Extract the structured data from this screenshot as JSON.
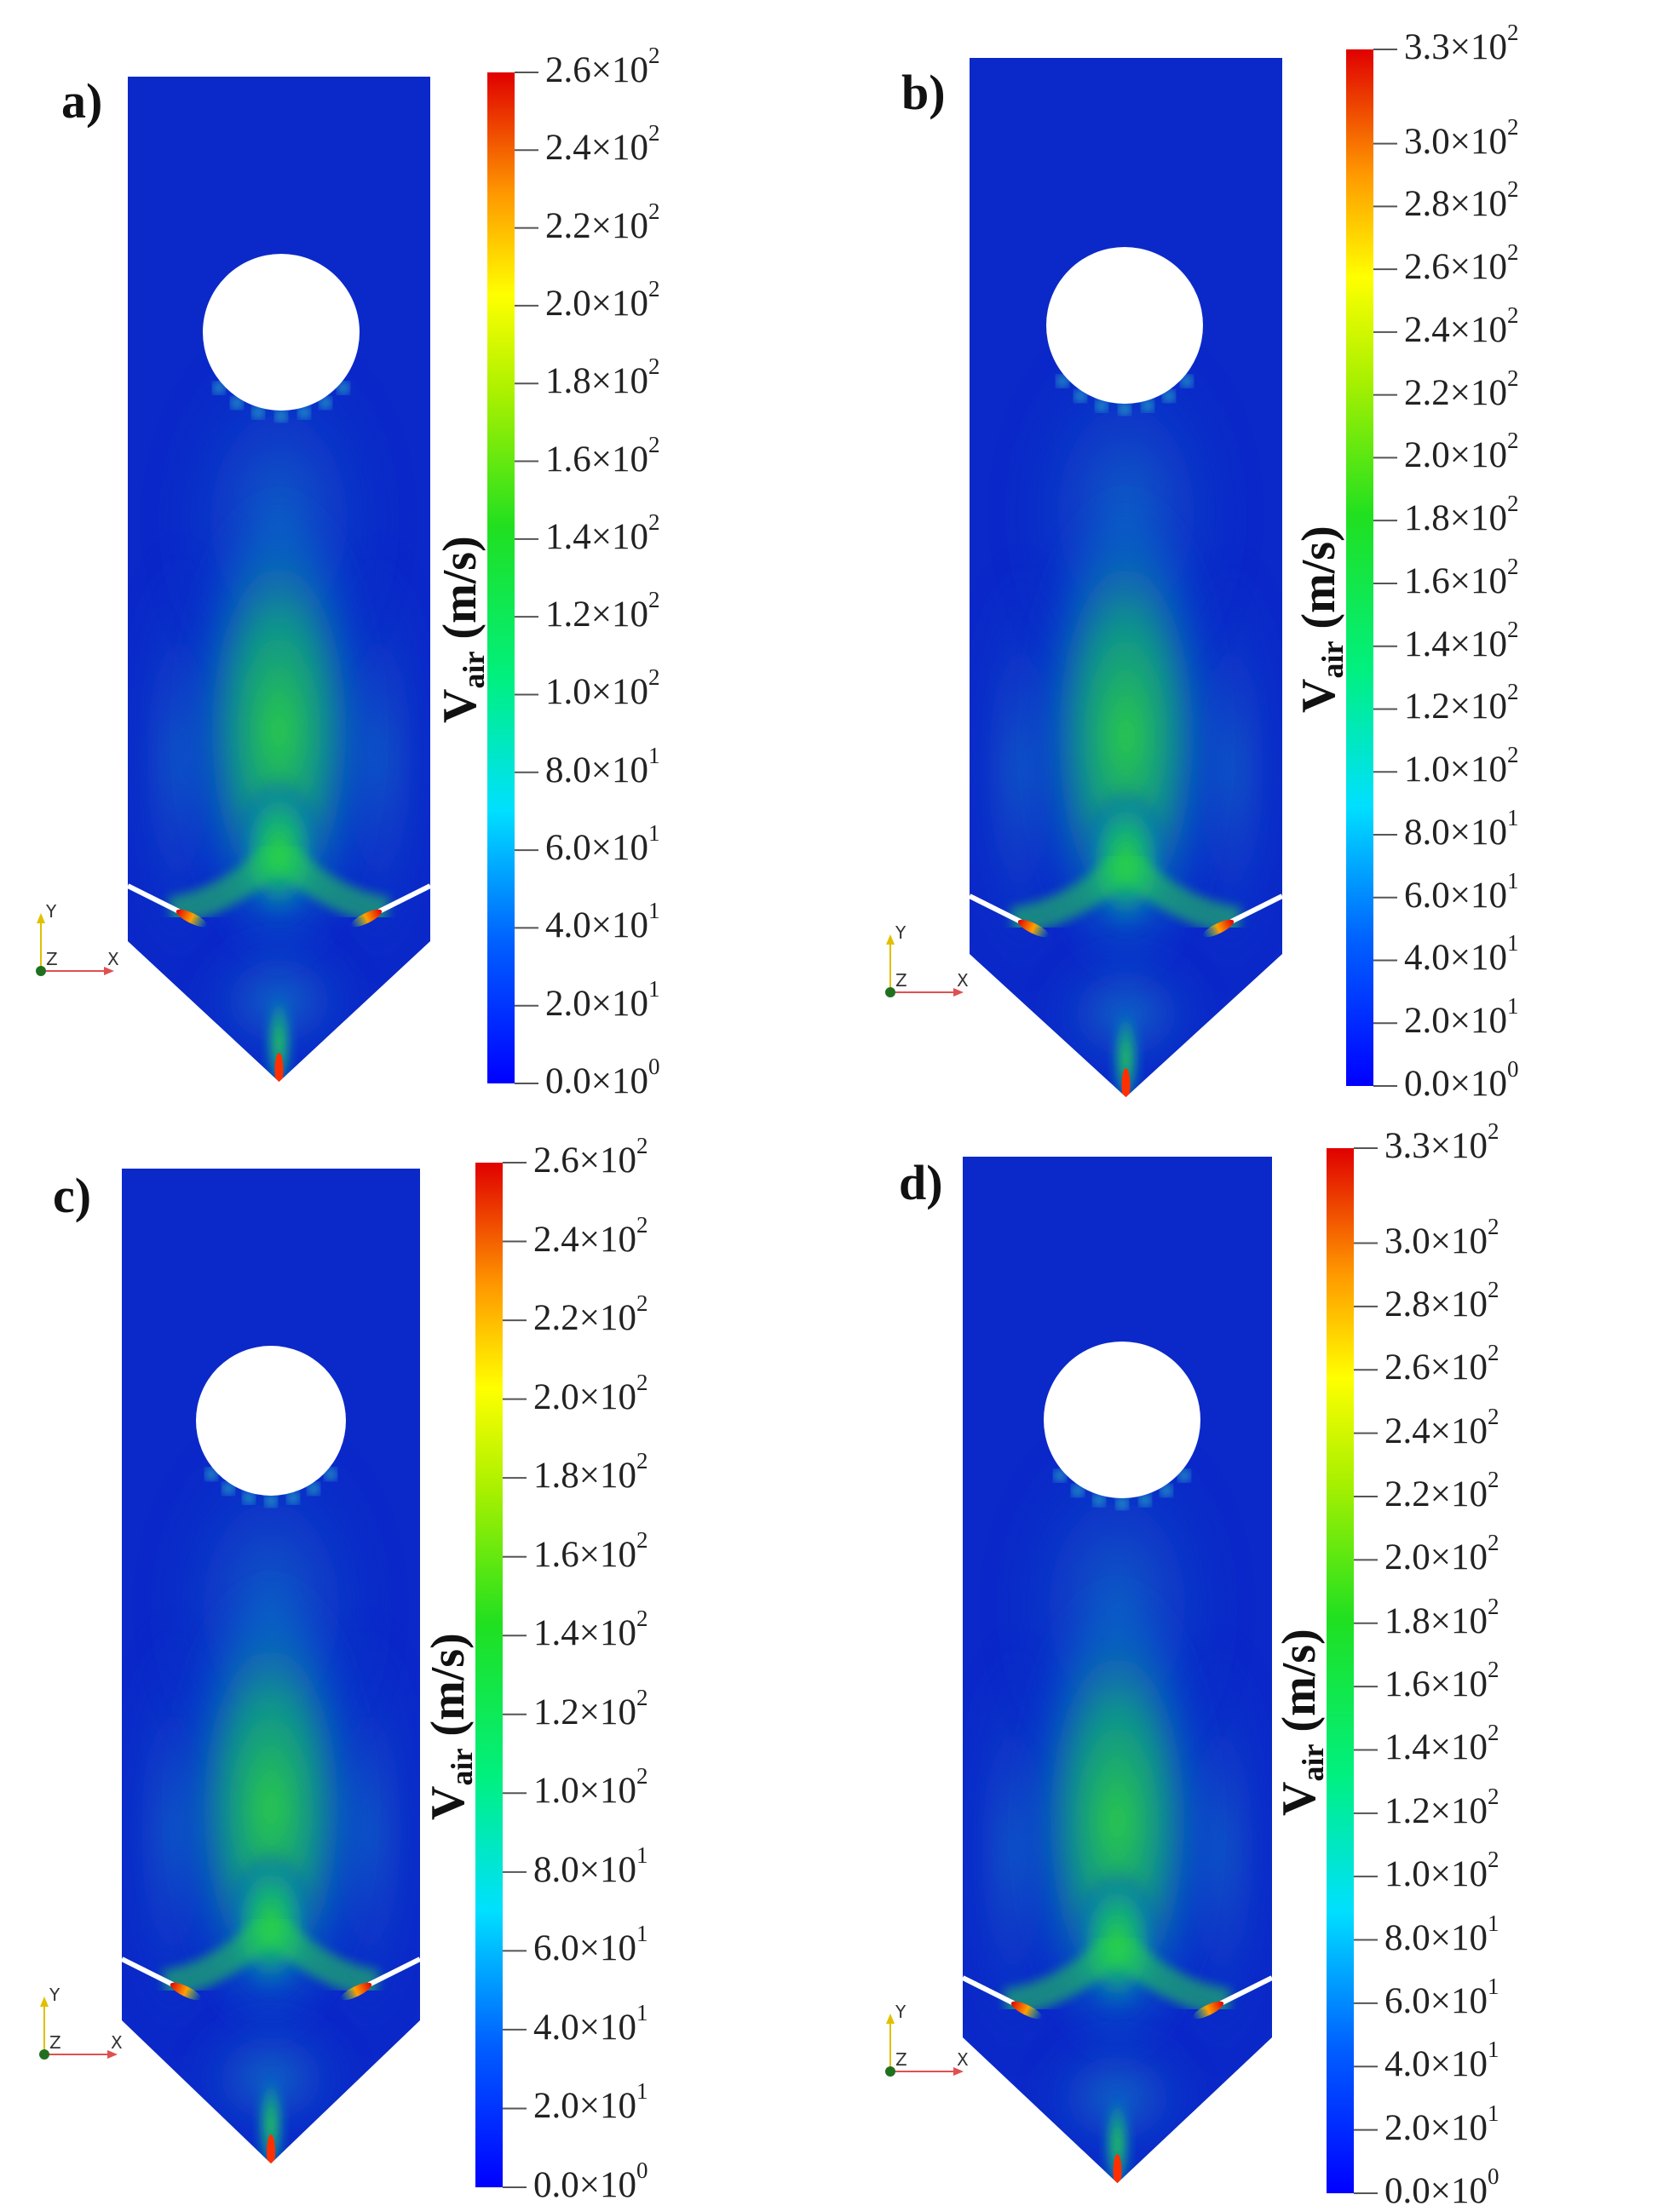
{
  "colors": {
    "field_background": "#0b29c9",
    "scale": [
      "#0000ff",
      "#0080ff",
      "#00ffff",
      "#00ff60",
      "#60ff00",
      "#ffff00",
      "#ffa000",
      "#ff3000",
      "#e00000"
    ]
  },
  "icons": {
    "triad": "xyz-axis-triad-icon",
    "hole": "circular-hole"
  },
  "axis_letters": {
    "y": "Y",
    "z": "Z",
    "x": "X"
  },
  "panels": [
    {
      "label": "a)",
      "colorbar": {
        "title_main": "V",
        "title_sub": "air",
        "title_unit": " (m/s)",
        "min": 0,
        "max": 260,
        "ticks": [
          {
            "mant": "0.0",
            "exp": "0",
            "value": 0
          },
          {
            "mant": "2.0",
            "exp": "1",
            "value": 20
          },
          {
            "mant": "4.0",
            "exp": "1",
            "value": 40
          },
          {
            "mant": "6.0",
            "exp": "1",
            "value": 60
          },
          {
            "mant": "8.0",
            "exp": "1",
            "value": 80
          },
          {
            "mant": "1.0",
            "exp": "2",
            "value": 100
          },
          {
            "mant": "1.2",
            "exp": "2",
            "value": 120
          },
          {
            "mant": "1.4",
            "exp": "2",
            "value": 140
          },
          {
            "mant": "1.6",
            "exp": "2",
            "value": 160
          },
          {
            "mant": "1.8",
            "exp": "2",
            "value": 180
          },
          {
            "mant": "2.0",
            "exp": "2",
            "value": 200
          },
          {
            "mant": "2.2",
            "exp": "2",
            "value": 220
          },
          {
            "mant": "2.4",
            "exp": "2",
            "value": 240
          },
          {
            "mant": "2.6",
            "exp": "2",
            "value": 260
          }
        ]
      }
    },
    {
      "label": "b)",
      "colorbar": {
        "title_main": "V",
        "title_sub": "air",
        "title_unit": " (m/s)",
        "min": 0,
        "max": 330,
        "ticks": [
          {
            "mant": "0.0",
            "exp": "0",
            "value": 0
          },
          {
            "mant": "2.0",
            "exp": "1",
            "value": 20
          },
          {
            "mant": "4.0",
            "exp": "1",
            "value": 40
          },
          {
            "mant": "6.0",
            "exp": "1",
            "value": 60
          },
          {
            "mant": "8.0",
            "exp": "1",
            "value": 80
          },
          {
            "mant": "1.0",
            "exp": "2",
            "value": 100
          },
          {
            "mant": "1.2",
            "exp": "2",
            "value": 120
          },
          {
            "mant": "1.4",
            "exp": "2",
            "value": 140
          },
          {
            "mant": "1.6",
            "exp": "2",
            "value": 160
          },
          {
            "mant": "1.8",
            "exp": "2",
            "value": 180
          },
          {
            "mant": "2.0",
            "exp": "2",
            "value": 200
          },
          {
            "mant": "2.2",
            "exp": "2",
            "value": 220
          },
          {
            "mant": "2.4",
            "exp": "2",
            "value": 240
          },
          {
            "mant": "2.6",
            "exp": "2",
            "value": 260
          },
          {
            "mant": "2.8",
            "exp": "2",
            "value": 280
          },
          {
            "mant": "3.0",
            "exp": "2",
            "value": 300
          },
          {
            "mant": "3.3",
            "exp": "2",
            "value": 330
          }
        ]
      }
    },
    {
      "label": "c)",
      "colorbar": {
        "title_main": "V",
        "title_sub": "air",
        "title_unit": " (m/s)",
        "min": 0,
        "max": 260,
        "ticks": [
          {
            "mant": "0.0",
            "exp": "0",
            "value": 0
          },
          {
            "mant": "2.0",
            "exp": "1",
            "value": 20
          },
          {
            "mant": "4.0",
            "exp": "1",
            "value": 40
          },
          {
            "mant": "6.0",
            "exp": "1",
            "value": 60
          },
          {
            "mant": "8.0",
            "exp": "1",
            "value": 80
          },
          {
            "mant": "1.0",
            "exp": "2",
            "value": 100
          },
          {
            "mant": "1.2",
            "exp": "2",
            "value": 120
          },
          {
            "mant": "1.4",
            "exp": "2",
            "value": 140
          },
          {
            "mant": "1.6",
            "exp": "2",
            "value": 160
          },
          {
            "mant": "1.8",
            "exp": "2",
            "value": 180
          },
          {
            "mant": "2.0",
            "exp": "2",
            "value": 200
          },
          {
            "mant": "2.2",
            "exp": "2",
            "value": 220
          },
          {
            "mant": "2.4",
            "exp": "2",
            "value": 240
          },
          {
            "mant": "2.6",
            "exp": "2",
            "value": 260
          }
        ]
      }
    },
    {
      "label": "d)",
      "colorbar": {
        "title_main": "V",
        "title_sub": "air",
        "title_unit": " (m/s)",
        "min": 0,
        "max": 330,
        "ticks": [
          {
            "mant": "0.0",
            "exp": "0",
            "value": 0
          },
          {
            "mant": "2.0",
            "exp": "1",
            "value": 20
          },
          {
            "mant": "4.0",
            "exp": "1",
            "value": 40
          },
          {
            "mant": "6.0",
            "exp": "1",
            "value": 60
          },
          {
            "mant": "8.0",
            "exp": "1",
            "value": 80
          },
          {
            "mant": "1.0",
            "exp": "2",
            "value": 100
          },
          {
            "mant": "1.2",
            "exp": "2",
            "value": 120
          },
          {
            "mant": "1.4",
            "exp": "2",
            "value": 140
          },
          {
            "mant": "1.6",
            "exp": "2",
            "value": 160
          },
          {
            "mant": "1.8",
            "exp": "2",
            "value": 180
          },
          {
            "mant": "2.0",
            "exp": "2",
            "value": 200
          },
          {
            "mant": "2.2",
            "exp": "2",
            "value": 220
          },
          {
            "mant": "2.4",
            "exp": "2",
            "value": 240
          },
          {
            "mant": "2.6",
            "exp": "2",
            "value": 260
          },
          {
            "mant": "2.8",
            "exp": "2",
            "value": 280
          },
          {
            "mant": "3.0",
            "exp": "2",
            "value": 300
          },
          {
            "mant": "3.3",
            "exp": "2",
            "value": 330
          }
        ]
      }
    }
  ]
}
